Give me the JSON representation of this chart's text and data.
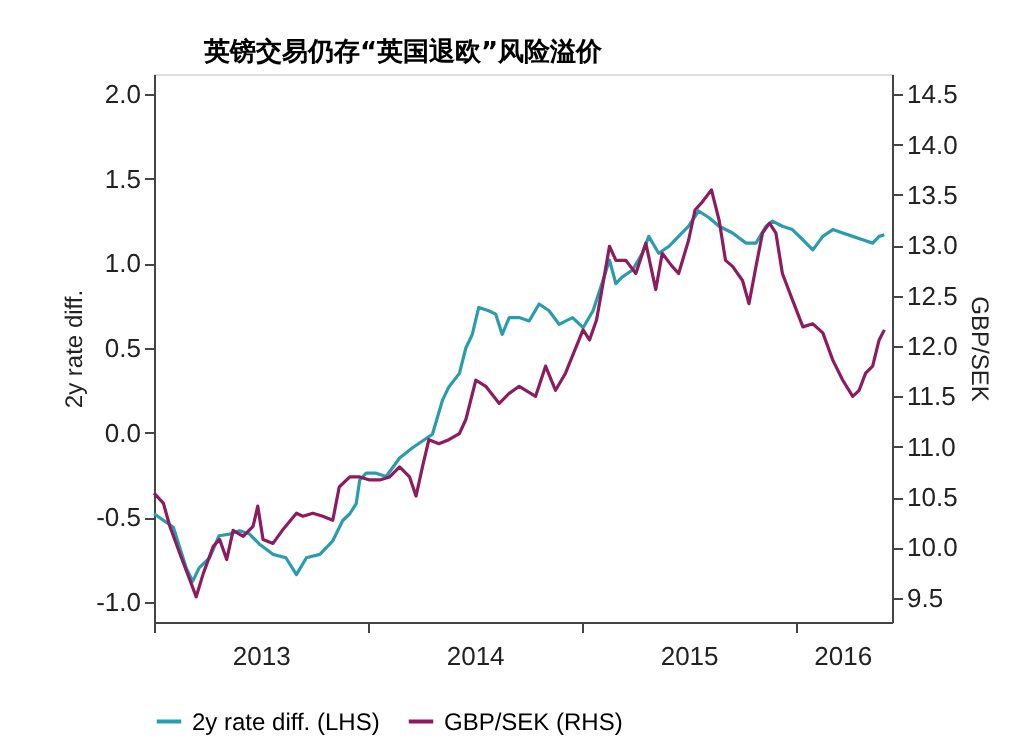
{
  "chart_data": {
    "type": "line",
    "title": "英镑交易仍存“英国退欧”风险溢价",
    "ylabel": "2y rate diff.",
    "y2label": "GBP/SEK",
    "xlim": [
      "2013-01-01",
      "2016-06-13"
    ],
    "xticks": [
      {
        "value": "2013-01-01",
        "label": null
      },
      {
        "value": "2013-07-02",
        "label": "2013"
      },
      {
        "value": "2014-01-01",
        "label": null
      },
      {
        "value": "2014-07-02",
        "label": "2014"
      },
      {
        "value": "2015-01-01",
        "label": null
      },
      {
        "value": "2015-07-02",
        "label": "2015"
      },
      {
        "value": "2016-01-01",
        "label": null
      },
      {
        "value": "2016-03-20",
        "label": "2016"
      }
    ],
    "ylim": [
      -1.12,
      2.12
    ],
    "yticks": [
      {
        "value": -1.0,
        "label": "-1.0"
      },
      {
        "value": -0.5,
        "label": "-0.5"
      },
      {
        "value": 0.0,
        "label": "0.0"
      },
      {
        "value": 0.5,
        "label": "0.5"
      },
      {
        "value": 1.0,
        "label": "1.0"
      },
      {
        "value": 1.5,
        "label": "1.5"
      },
      {
        "value": 2.0,
        "label": "2.0"
      }
    ],
    "y2lim": [
      9.26,
      14.7
    ],
    "y2ticks": [
      {
        "value": 9.5,
        "label": "9.5"
      },
      {
        "value": 10.0,
        "label": "10.0"
      },
      {
        "value": 10.5,
        "label": "10.5"
      },
      {
        "value": 11.0,
        "label": "11.0"
      },
      {
        "value": 11.5,
        "label": "11.5"
      },
      {
        "value": 12.0,
        "label": "12.0"
      },
      {
        "value": 12.5,
        "label": "12.5"
      },
      {
        "value": 13.0,
        "label": "13.0"
      },
      {
        "value": 13.5,
        "label": "13.5"
      },
      {
        "value": 14.0,
        "label": "14.0"
      },
      {
        "value": 14.5,
        "label": "14.5"
      }
    ],
    "grid": false,
    "legend": "bottom",
    "line_style": "solid",
    "marker": "none",
    "series": [
      {
        "name": "2y rate diff. (LHS)",
        "color": "#2a9cad",
        "axis": "y",
        "x": [
          "2013-01-01",
          "2013-02-03",
          "2013-02-25",
          "2013-03-08",
          "2013-03-19",
          "2013-04-06",
          "2013-04-22",
          "2013-05-10",
          "2013-05-27",
          "2013-06-13",
          "2013-06-30",
          "2013-07-23",
          "2013-08-14",
          "2013-09-01",
          "2013-09-18",
          "2013-10-11",
          "2013-11-02",
          "2013-11-19",
          "2013-12-01",
          "2013-12-12",
          "2013-12-18",
          "2013-12-29",
          "2014-01-15",
          "2014-02-01",
          "2014-02-24",
          "2014-03-18",
          "2014-04-04",
          "2014-04-21",
          "2014-05-08",
          "2014-05-19",
          "2014-06-06",
          "2014-06-17",
          "2014-06-28",
          "2014-07-09",
          "2014-07-26",
          "2014-08-07",
          "2014-08-18",
          "2014-08-30",
          "2014-09-16",
          "2014-10-03",
          "2014-10-20",
          "2014-11-06",
          "2014-11-23",
          "2014-12-16",
          "2015-01-03",
          "2015-01-20",
          "2015-02-06",
          "2015-02-17",
          "2015-02-28",
          "2015-03-11",
          "2015-03-28",
          "2015-04-14",
          "2015-04-25",
          "2015-05-12",
          "2015-05-29",
          "2015-06-15",
          "2015-07-02",
          "2015-07-19",
          "2015-08-06",
          "2015-08-23",
          "2015-09-15",
          "2015-10-08",
          "2015-10-25",
          "2015-11-11",
          "2015-11-22",
          "2015-12-09",
          "2015-12-26",
          "2016-01-13",
          "2016-01-30",
          "2016-02-16",
          "2016-03-04",
          "2016-03-21",
          "2016-04-07",
          "2016-04-24",
          "2016-05-11",
          "2016-05-22",
          "2016-05-31"
        ],
        "values": [
          -0.48,
          -0.56,
          -0.8,
          -0.88,
          -0.8,
          -0.74,
          -0.61,
          -0.6,
          -0.58,
          -0.6,
          -0.66,
          -0.72,
          -0.74,
          -0.84,
          -0.74,
          -0.72,
          -0.64,
          -0.52,
          -0.48,
          -0.42,
          -0.28,
          -0.24,
          -0.24,
          -0.26,
          -0.15,
          -0.09,
          -0.05,
          -0.01,
          0.19,
          0.27,
          0.35,
          0.5,
          0.58,
          0.74,
          0.72,
          0.7,
          0.58,
          0.68,
          0.68,
          0.66,
          0.76,
          0.72,
          0.64,
          0.68,
          0.62,
          0.72,
          0.9,
          1.02,
          0.88,
          0.92,
          0.96,
          1.06,
          1.16,
          1.06,
          1.1,
          1.16,
          1.22,
          1.31,
          1.27,
          1.22,
          1.18,
          1.12,
          1.12,
          1.22,
          1.25,
          1.22,
          1.2,
          1.14,
          1.08,
          1.16,
          1.2,
          1.18,
          1.16,
          1.14,
          1.12,
          1.16,
          1.17
        ]
      },
      {
        "name": "GBP/SEK (RHS)",
        "color": "#8c1c5f",
        "axis": "y2",
        "x": [
          "2013-01-01",
          "2013-01-17",
          "2013-01-28",
          "2013-02-14",
          "2013-03-03",
          "2013-03-14",
          "2013-03-26",
          "2013-04-12",
          "2013-04-23",
          "2013-05-05",
          "2013-05-16",
          "2013-06-02",
          "2013-06-19",
          "2013-06-27",
          "2013-07-06",
          "2013-07-23",
          "2013-08-08",
          "2013-09-01",
          "2013-09-12",
          "2013-09-29",
          "2013-10-16",
          "2013-11-02",
          "2013-11-13",
          "2013-12-01",
          "2013-12-18",
          "2014-01-04",
          "2014-01-21",
          "2014-02-07",
          "2014-02-24",
          "2014-03-13",
          "2014-03-24",
          "2014-04-04",
          "2014-04-15",
          "2014-05-02",
          "2014-05-19",
          "2014-06-06",
          "2014-06-17",
          "2014-07-04",
          "2014-07-21",
          "2014-08-13",
          "2014-08-30",
          "2014-09-16",
          "2014-10-14",
          "2014-10-31",
          "2014-11-17",
          "2014-12-04",
          "2014-12-27",
          "2015-01-03",
          "2015-01-14",
          "2015-01-26",
          "2015-02-06",
          "2015-02-17",
          "2015-02-28",
          "2015-03-17",
          "2015-04-03",
          "2015-04-20",
          "2015-05-07",
          "2015-05-18",
          "2015-06-04",
          "2015-06-15",
          "2015-07-02",
          "2015-07-13",
          "2015-07-24",
          "2015-08-10",
          "2015-08-23",
          "2015-09-03",
          "2015-09-15",
          "2015-10-02",
          "2015-10-13",
          "2015-10-25",
          "2015-11-05",
          "2015-11-17",
          "2015-11-28",
          "2015-12-09",
          "2015-12-26",
          "2016-01-13",
          "2016-01-30",
          "2016-02-16",
          "2016-03-04",
          "2016-03-21",
          "2016-04-07",
          "2016-04-18",
          "2016-04-29",
          "2016-05-11",
          "2016-05-22",
          "2016-05-31"
        ],
        "values": [
          10.54,
          10.44,
          10.21,
          9.94,
          9.68,
          9.51,
          9.74,
          10.01,
          10.08,
          9.88,
          10.17,
          10.11,
          10.21,
          10.41,
          10.08,
          10.04,
          10.17,
          10.34,
          10.31,
          10.34,
          10.31,
          10.27,
          10.6,
          10.7,
          10.7,
          10.67,
          10.67,
          10.7,
          10.8,
          10.7,
          10.51,
          10.8,
          11.07,
          11.03,
          11.07,
          11.13,
          11.27,
          11.66,
          11.6,
          11.43,
          11.53,
          11.6,
          11.5,
          11.8,
          11.56,
          11.73,
          12.06,
          12.16,
          12.06,
          12.26,
          12.62,
          12.99,
          12.85,
          12.85,
          12.72,
          13.02,
          12.56,
          12.92,
          12.79,
          12.72,
          13.05,
          13.35,
          13.42,
          13.55,
          13.25,
          12.85,
          12.79,
          12.65,
          12.42,
          12.79,
          13.12,
          13.22,
          13.12,
          12.72,
          12.46,
          12.19,
          12.22,
          12.13,
          11.86,
          11.66,
          11.5,
          11.56,
          11.73,
          11.8,
          12.06,
          12.16
        ]
      }
    ]
  }
}
